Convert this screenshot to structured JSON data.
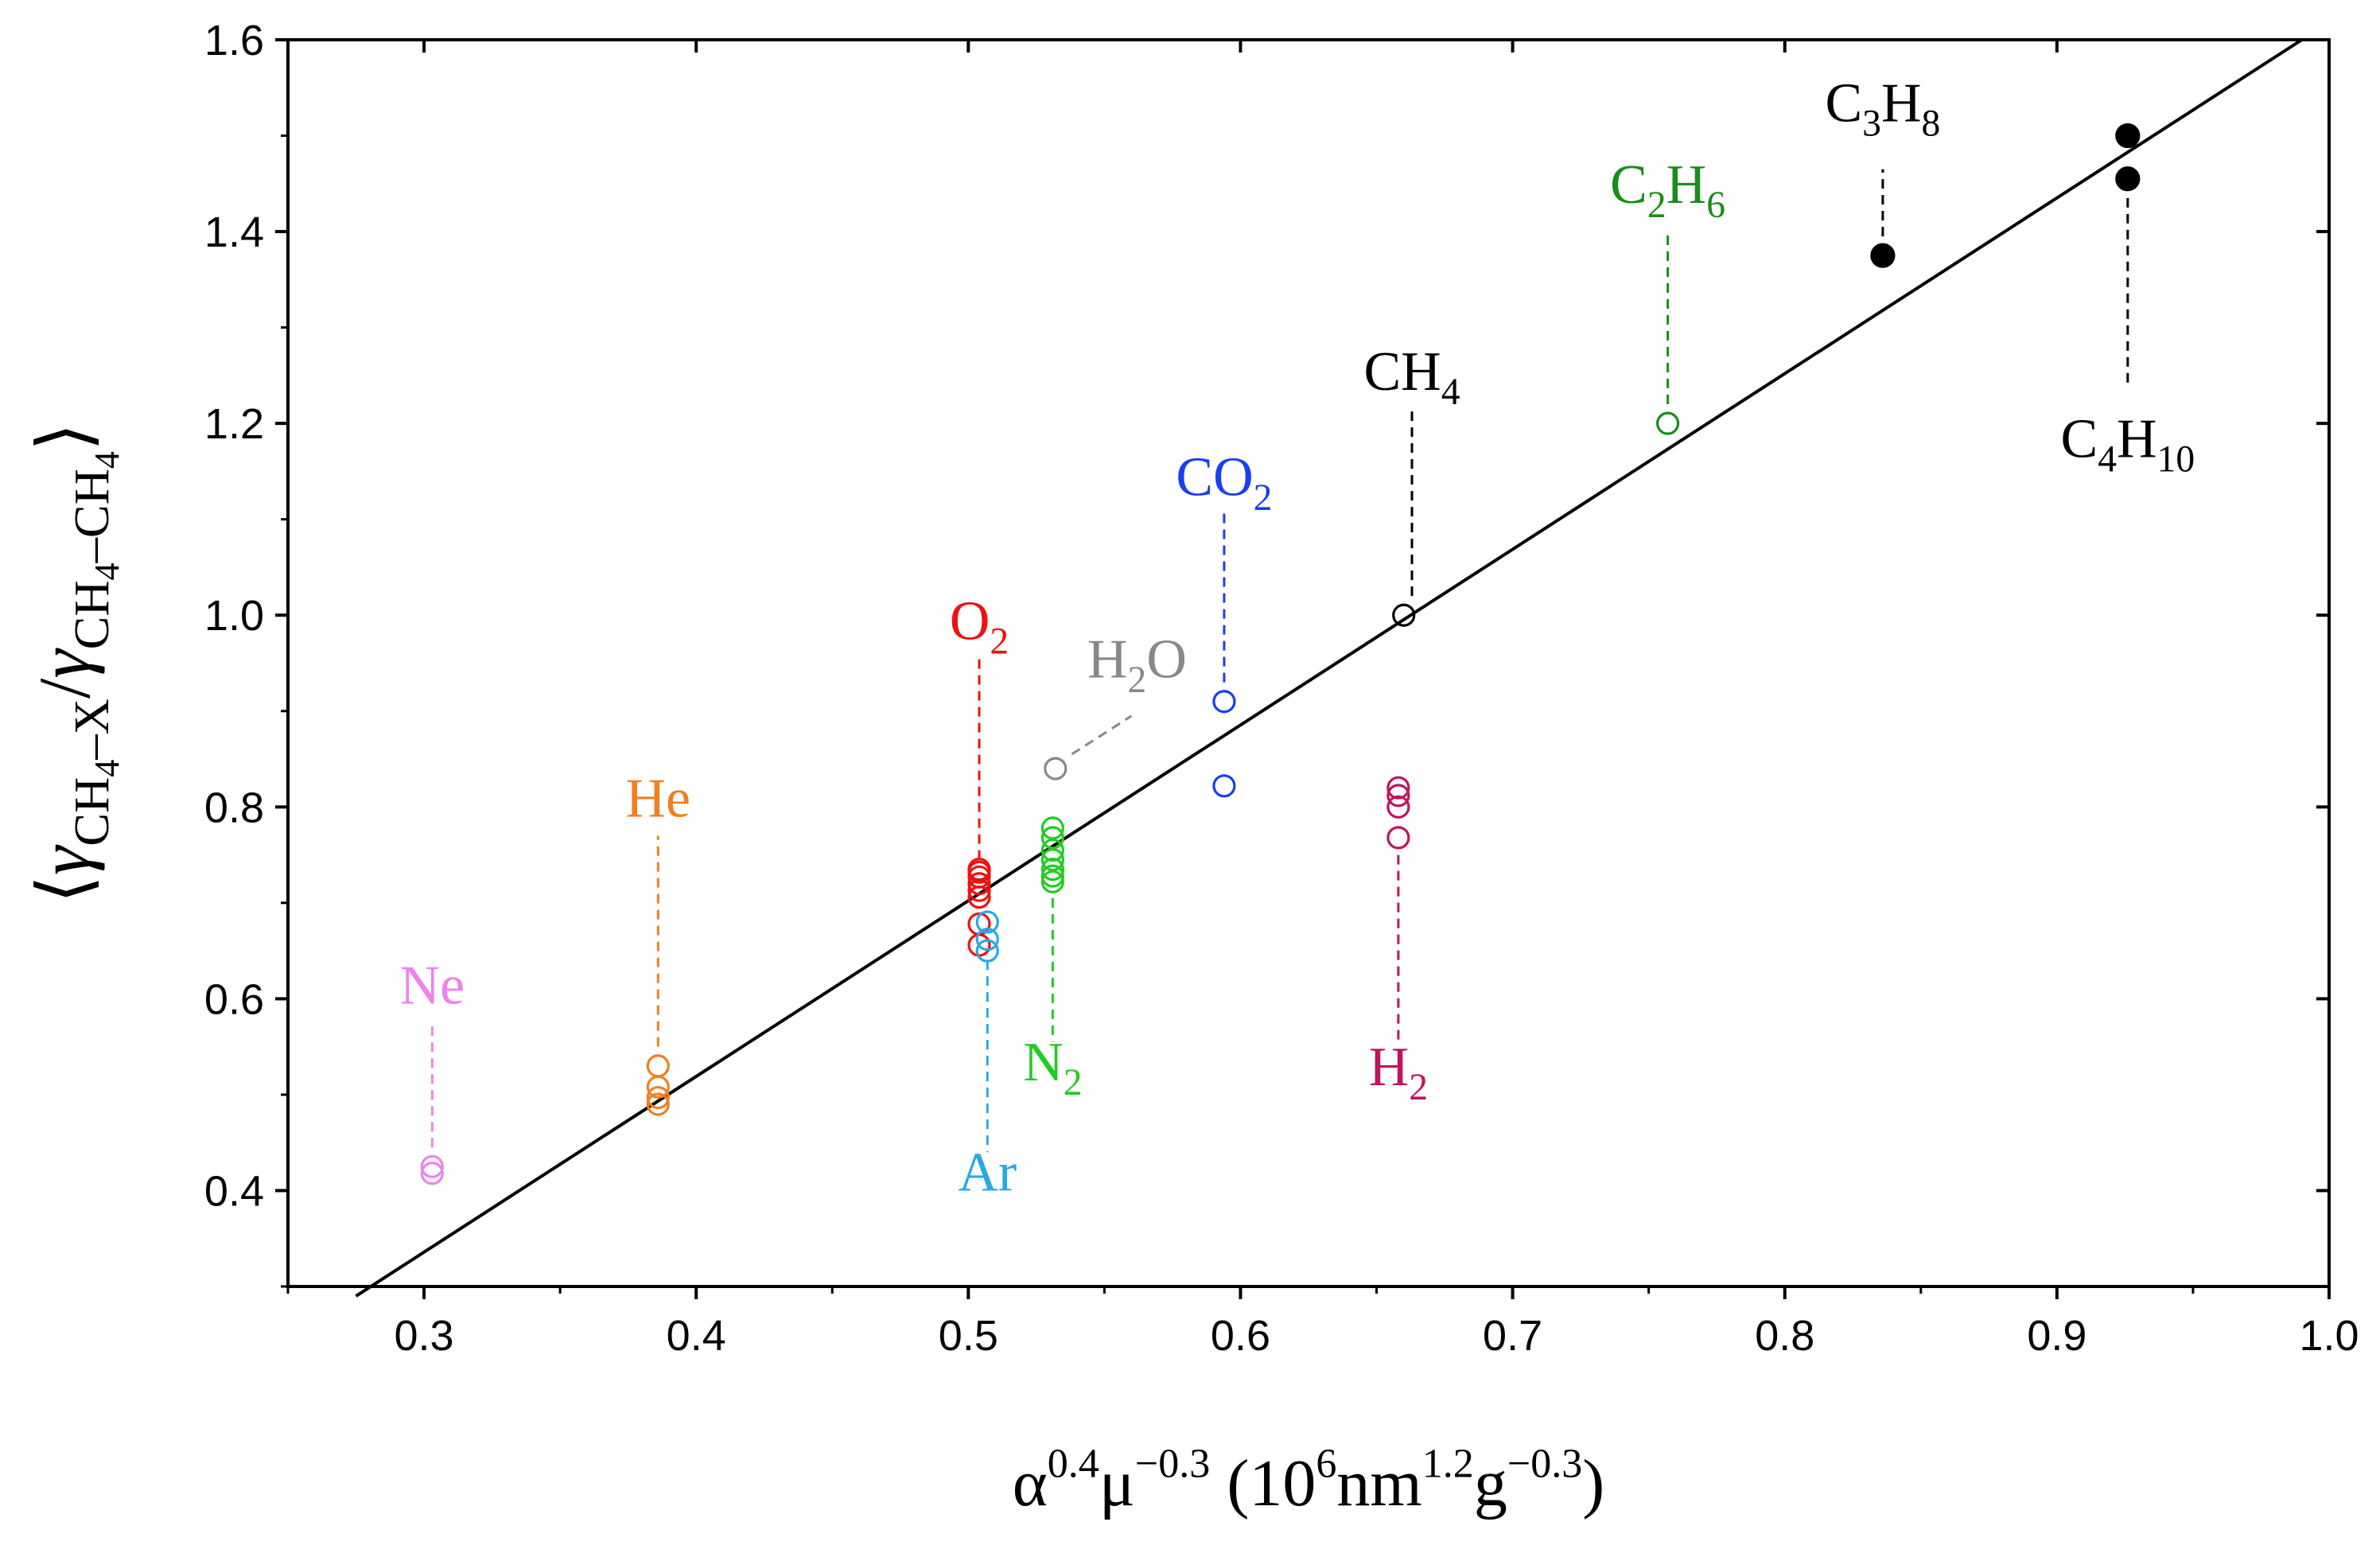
{
  "chart_data": {
    "type": "scatter",
    "title": "",
    "xlabel": {
      "parts": [
        {
          "t": "α"
        },
        {
          "t": "0.4",
          "sup": true
        },
        {
          "t": "μ"
        },
        {
          "t": "−0.3",
          "sup": true
        },
        {
          "t": " (10"
        },
        {
          "t": "6",
          "sup": true
        },
        {
          "t": "nm"
        },
        {
          "t": "1.2",
          "sup": true
        },
        {
          "t": "g"
        },
        {
          "t": "−0.3",
          "sup": true
        },
        {
          "t": ")"
        }
      ]
    },
    "ylabel": {
      "parts": [
        {
          "t": "⟨"
        },
        {
          "t": "γ",
          "italic": true
        },
        {
          "t": "CH",
          "sub": true
        },
        {
          "t": "4",
          "subsub": true
        },
        {
          "t": "–X",
          "sub": true
        },
        {
          "t": "/"
        },
        {
          "t": "γ",
          "italic": true
        },
        {
          "t": "CH",
          "sub": true
        },
        {
          "t": "4",
          "subsub": true
        },
        {
          "t": "–CH",
          "sub": true
        },
        {
          "t": "4",
          "subsub": true
        },
        {
          "t": "⟩"
        }
      ]
    },
    "xlim": [
      0.25,
      1.0
    ],
    "ylim": [
      0.3,
      1.6
    ],
    "x_ticks": [
      0.3,
      0.4,
      0.5,
      0.6,
      0.7,
      0.8,
      0.9,
      1.0
    ],
    "x_tick_labels": [
      "0.3",
      "0.4",
      "0.5",
      "0.6",
      "0.7",
      "0.8",
      "0.9",
      "1.0"
    ],
    "y_ticks": [
      0.4,
      0.6,
      0.8,
      1.0,
      1.2,
      1.4,
      1.6
    ],
    "y_tick_labels": [
      "0.4",
      "0.6",
      "0.8",
      "1.0",
      "1.2",
      "1.4",
      "1.6"
    ],
    "grid": false,
    "fit_line": {
      "name": "linear fit",
      "x": [
        0.275,
        0.99
      ],
      "y": [
        0.29,
        1.6
      ]
    },
    "series": [
      {
        "name": "Ne",
        "color": "#ee82ee",
        "filled": false,
        "x": [
          0.303,
          0.303
        ],
        "y": [
          0.425,
          0.418
        ],
        "label": [
          {
            "t": "Ne"
          }
        ],
        "label_xy": [
          0.303,
          0.595
        ],
        "leader": [
          [
            0.303,
            0.445
          ],
          [
            0.303,
            0.575
          ]
        ]
      },
      {
        "name": "He",
        "color": "#f08020",
        "filled": false,
        "x": [
          0.386,
          0.386,
          0.386,
          0.386
        ],
        "y": [
          0.53,
          0.508,
          0.497,
          0.49
        ],
        "label": [
          {
            "t": "He"
          }
        ],
        "label_xy": [
          0.386,
          0.79
        ],
        "leader": [
          [
            0.386,
            0.55
          ],
          [
            0.386,
            0.77
          ]
        ]
      },
      {
        "name": "O2",
        "color": "#ee1111",
        "filled": false,
        "x": [
          0.504,
          0.504,
          0.504,
          0.504,
          0.504,
          0.504,
          0.504,
          0.504
        ],
        "y": [
          0.735,
          0.727,
          0.72,
          0.713,
          0.706,
          0.678,
          0.656,
          0.732
        ],
        "label": [
          {
            "t": "O"
          },
          {
            "t": "2",
            "sub": true
          }
        ],
        "label_xy": [
          0.504,
          0.975
        ],
        "leader": [
          [
            0.504,
            0.745
          ],
          [
            0.504,
            0.955
          ]
        ]
      },
      {
        "name": "Ar",
        "color": "#2aa7e8",
        "filled": false,
        "x": [
          0.507,
          0.507,
          0.507
        ],
        "y": [
          0.68,
          0.662,
          0.65
        ],
        "label": [
          {
            "t": "Ar"
          }
        ],
        "label_xy": [
          0.507,
          0.4
        ],
        "leader": [
          [
            0.507,
            0.64
          ],
          [
            0.507,
            0.44
          ]
        ]
      },
      {
        "name": "N2",
        "color": "#22cc22",
        "filled": false,
        "x": [
          0.531,
          0.531,
          0.531,
          0.531,
          0.531,
          0.531,
          0.531
        ],
        "y": [
          0.778,
          0.768,
          0.755,
          0.745,
          0.735,
          0.728,
          0.722
        ],
        "label": [
          {
            "t": "N"
          },
          {
            "t": "2",
            "sub": true
          }
        ],
        "label_xy": [
          0.531,
          0.515
        ],
        "leader": [
          [
            0.531,
            0.705
          ],
          [
            0.531,
            0.555
          ]
        ]
      },
      {
        "name": "H2O",
        "color": "#888888",
        "filled": false,
        "x": [
          0.532
        ],
        "y": [
          0.84
        ],
        "label": [
          {
            "t": "H"
          },
          {
            "t": "2",
            "sub": true
          },
          {
            "t": "O"
          }
        ],
        "label_xy": [
          0.562,
          0.935
        ],
        "leader": [
          [
            0.538,
            0.855
          ],
          [
            0.56,
            0.895
          ]
        ]
      },
      {
        "name": "CO2",
        "color": "#1a3ef0",
        "filled": false,
        "x": [
          0.594,
          0.594
        ],
        "y": [
          0.91,
          0.822
        ],
        "label": [
          {
            "t": "CO"
          },
          {
            "t": "2",
            "sub": true
          }
        ],
        "label_xy": [
          0.594,
          1.125
        ],
        "leader": [
          [
            0.594,
            0.93
          ],
          [
            0.594,
            1.11
          ]
        ]
      },
      {
        "name": "H2",
        "color": "#c0145a",
        "filled": false,
        "x": [
          0.658,
          0.658,
          0.658,
          0.658
        ],
        "y": [
          0.82,
          0.812,
          0.8,
          0.768
        ],
        "label": [
          {
            "t": "H"
          },
          {
            "t": "2",
            "sub": true
          }
        ],
        "label_xy": [
          0.658,
          0.51
        ],
        "leader": [
          [
            0.658,
            0.75
          ],
          [
            0.658,
            0.555
          ]
        ]
      },
      {
        "name": "CH4",
        "color": "#000000",
        "filled": false,
        "x": [
          0.66
        ],
        "y": [
          1.0
        ],
        "label": [
          {
            "t": "CH"
          },
          {
            "t": "4",
            "sub": true
          }
        ],
        "label_xy": [
          0.663,
          1.235
        ],
        "leader": [
          [
            0.663,
            1.02
          ],
          [
            0.663,
            1.215
          ]
        ]
      },
      {
        "name": "C2H6",
        "color": "#1a8c1a",
        "filled": false,
        "x": [
          0.757
        ],
        "y": [
          1.2
        ],
        "label": [
          {
            "t": "C"
          },
          {
            "t": "2",
            "sub": true
          },
          {
            "t": "H"
          },
          {
            "t": "6",
            "sub": true
          }
        ],
        "label_xy": [
          0.757,
          1.43
        ],
        "leader": [
          [
            0.757,
            1.22
          ],
          [
            0.757,
            1.4
          ]
        ]
      },
      {
        "name": "C3H8",
        "color": "#000000",
        "filled": true,
        "x": [
          0.836
        ],
        "y": [
          1.375
        ],
        "label": [
          {
            "t": "C"
          },
          {
            "t": "3",
            "sub": true
          },
          {
            "t": "H"
          },
          {
            "t": "8",
            "sub": true
          }
        ],
        "label_xy": [
          0.836,
          1.515
        ],
        "leader": [
          [
            0.836,
            1.395
          ],
          [
            0.836,
            1.465
          ]
        ]
      },
      {
        "name": "C4H10",
        "color": "#000000",
        "filled": true,
        "x": [
          0.926,
          0.926
        ],
        "y": [
          1.5,
          1.455
        ],
        "label": [
          {
            "t": "C"
          },
          {
            "t": "4",
            "sub": true
          },
          {
            "t": "H"
          },
          {
            "t": "10",
            "sub": true
          }
        ],
        "label_xy": [
          0.926,
          1.165
        ],
        "leader": [
          [
            0.926,
            1.435
          ],
          [
            0.926,
            1.24
          ]
        ]
      }
    ]
  }
}
